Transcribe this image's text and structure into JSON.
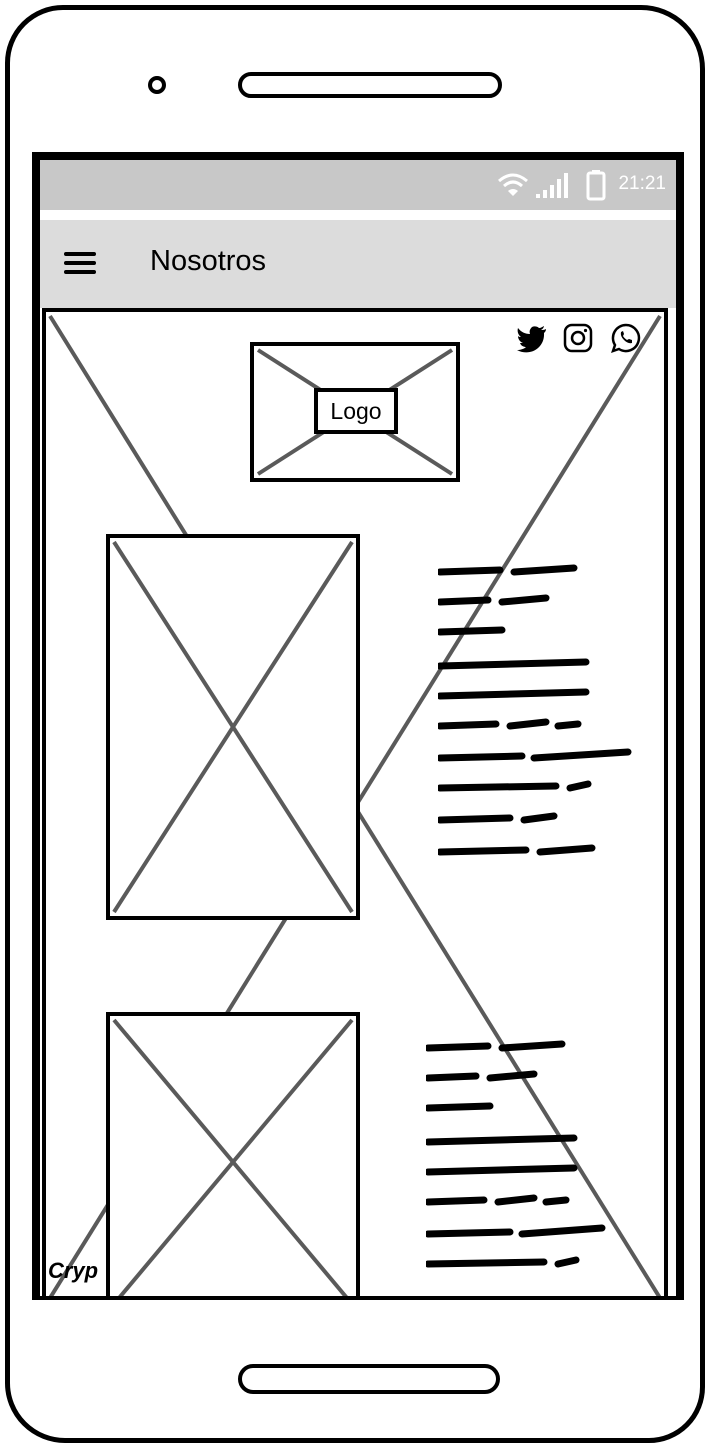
{
  "status_bar": {
    "time": "21:21",
    "icons": [
      "wifi-icon",
      "signal-icon",
      "battery-icon"
    ]
  },
  "app_bar": {
    "menu_icon": "hamburger-menu-icon",
    "title": "Nosotros"
  },
  "social_icons": [
    "twitter-icon",
    "instagram-icon",
    "whatsapp-icon"
  ],
  "logo": {
    "label": "Logo"
  },
  "sections": [
    {
      "image": "image-placeholder",
      "text": "placeholder-scribble-text"
    },
    {
      "image": "image-placeholder",
      "text": "placeholder-scribble-text"
    }
  ],
  "footer": {
    "text": "Cryp"
  },
  "colors": {
    "status_bar_bg": "#c8c8c8",
    "app_bar_bg": "#dcdcdc",
    "placeholder_line": "#5a5a5a"
  }
}
